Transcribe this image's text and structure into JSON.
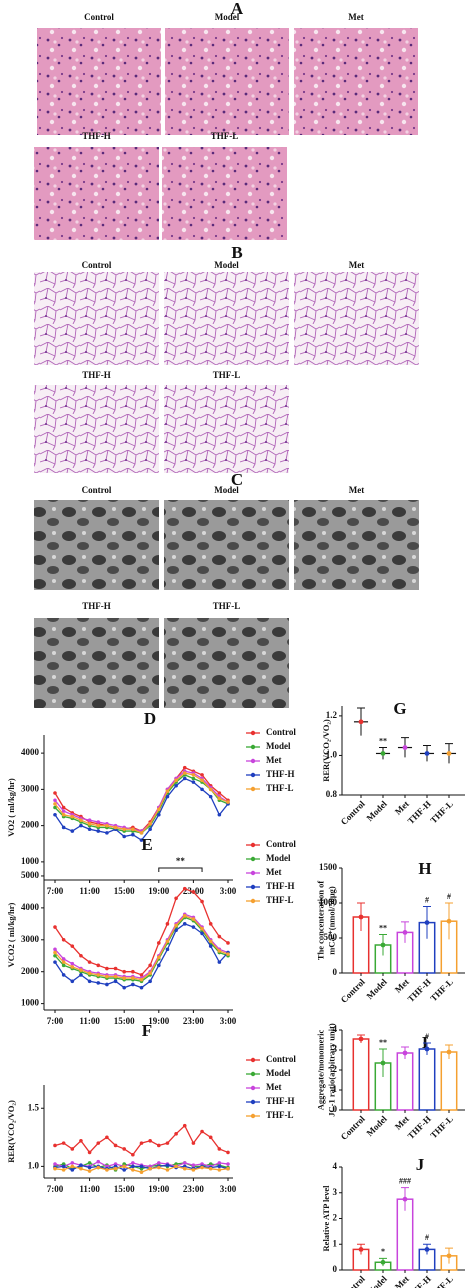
{
  "image_panels": [
    {
      "label": "A",
      "images": [
        "Control",
        "Model",
        "Met",
        "THF-H",
        "THF-L"
      ]
    },
    {
      "label": "B",
      "images": [
        "Control",
        "Model",
        "Met",
        "THF-H",
        "THF-L"
      ]
    },
    {
      "label": "C",
      "images": [
        "Control",
        "Model",
        "Met",
        "THF-H",
        "THF-L"
      ]
    }
  ],
  "chart_data": [
    {
      "type": "line",
      "title": "D",
      "ylabel": "VO2 ( ml/kg/hr)",
      "legend": "right",
      "categories": [
        "7:00",
        null,
        null,
        null,
        "11:00",
        null,
        null,
        null,
        "15:00",
        null,
        null,
        null,
        "19:00",
        null,
        null,
        null,
        "23:00",
        null,
        null,
        null,
        "3:00"
      ],
      "ylim": [
        500,
        4500
      ],
      "yticks": [
        1000,
        2000,
        3000,
        4000
      ],
      "series": [
        {
          "name": "Control",
          "color": "#e8312f",
          "values": [
            2900,
            2500,
            2350,
            2250,
            2100,
            2050,
            2000,
            1950,
            1900,
            1950,
            1850,
            2100,
            2500,
            3000,
            3300,
            3600,
            3500,
            3400,
            3100,
            2900,
            2700
          ]
        },
        {
          "name": "Model",
          "color": "#3aa935",
          "values": [
            2500,
            2250,
            2200,
            2100,
            2000,
            1950,
            1950,
            1900,
            1850,
            1850,
            1800,
            2000,
            2400,
            2900,
            3200,
            3400,
            3300,
            3200,
            3000,
            2700,
            2600
          ]
        },
        {
          "name": "Met",
          "color": "#c844dc",
          "values": [
            2700,
            2400,
            2300,
            2200,
            2150,
            2100,
            2050,
            2000,
            1950,
            1900,
            1850,
            2050,
            2500,
            3000,
            3300,
            3500,
            3450,
            3300,
            3050,
            2800,
            2650
          ]
        },
        {
          "name": "THF-H",
          "color": "#1f3fbf",
          "values": [
            2300,
            1950,
            1850,
            2000,
            1900,
            1850,
            1800,
            1900,
            1700,
            1750,
            1600,
            1900,
            2300,
            2800,
            3100,
            3300,
            3200,
            3000,
            2800,
            2300,
            2600
          ]
        },
        {
          "name": "THF-L",
          "color": "#f5a030",
          "values": [
            2600,
            2300,
            2250,
            2150,
            2050,
            2000,
            2000,
            1950,
            1900,
            1900,
            1800,
            2050,
            2450,
            2950,
            3250,
            3450,
            3400,
            3250,
            3000,
            2750,
            2650
          ]
        }
      ]
    },
    {
      "type": "line",
      "title": "E",
      "ylabel": "VCO2 ( ml/kg/hr)",
      "legend": "right",
      "annotation": "**",
      "categories": [
        "7:00",
        null,
        null,
        null,
        "11:00",
        null,
        null,
        null,
        "15:00",
        null,
        null,
        null,
        "19:00",
        null,
        null,
        null,
        "23:00",
        null,
        null,
        null,
        "3:00"
      ],
      "ylim": [
        800,
        5500
      ],
      "yticks": [
        1000,
        2000,
        3000,
        4000,
        5000
      ],
      "series": [
        {
          "name": "Control",
          "color": "#e8312f",
          "values": [
            3400,
            3000,
            2800,
            2500,
            2300,
            2200,
            2100,
            2100,
            2000,
            2000,
            1900,
            2200,
            2900,
            3500,
            4300,
            4600,
            4500,
            4200,
            3500,
            3100,
            2900
          ]
        },
        {
          "name": "Model",
          "color": "#3aa935",
          "values": [
            2500,
            2200,
            2100,
            2000,
            1900,
            1850,
            1800,
            1800,
            1750,
            1750,
            1700,
            1900,
            2400,
            2900,
            3400,
            3700,
            3600,
            3300,
            2900,
            2600,
            2500
          ]
        },
        {
          "name": "Met",
          "color": "#c844dc",
          "values": [
            2700,
            2400,
            2250,
            2100,
            2000,
            1950,
            1900,
            1900,
            1850,
            1850,
            1800,
            2000,
            2500,
            3000,
            3500,
            3800,
            3700,
            3400,
            3000,
            2700,
            2600
          ]
        },
        {
          "name": "THF-H",
          "color": "#1f3fbf",
          "values": [
            2300,
            1900,
            1700,
            1900,
            1700,
            1650,
            1600,
            1700,
            1500,
            1600,
            1500,
            1700,
            2200,
            2700,
            3300,
            3500,
            3400,
            3200,
            2800,
            2300,
            2600
          ]
        },
        {
          "name": "THF-L",
          "color": "#f5a030",
          "values": [
            2600,
            2300,
            2150,
            2050,
            1950,
            1900,
            1850,
            1850,
            1800,
            1800,
            1750,
            1950,
            2450,
            2950,
            3450,
            3750,
            3650,
            3350,
            2950,
            2650,
            2550
          ]
        }
      ]
    },
    {
      "type": "line",
      "title": "F",
      "ylabel": "RER(VCO₂/VO₂)",
      "legend": "right",
      "categories": [
        "7:00",
        null,
        null,
        null,
        "11:00",
        null,
        null,
        null,
        "15:00",
        null,
        null,
        null,
        "19:00",
        null,
        null,
        null,
        "23:00",
        null,
        null,
        null,
        "3:00"
      ],
      "ylim": [
        0.9,
        1.7
      ],
      "yticks": [
        {
          "value": 1,
          "label": "1.0"
        },
        1.5
      ],
      "series": [
        {
          "name": "Control",
          "color": "#e8312f",
          "values": [
            1.18,
            1.2,
            1.15,
            1.22,
            1.12,
            1.2,
            1.25,
            1.18,
            1.15,
            1.1,
            1.2,
            1.22,
            1.18,
            1.2,
            1.28,
            1.35,
            1.2,
            1.3,
            1.25,
            1.15,
            1.12
          ]
        },
        {
          "name": "Model",
          "color": "#3aa935",
          "values": [
            1.0,
            1.02,
            0.98,
            1.0,
            1.03,
            0.99,
            1.01,
            0.97,
            1.02,
            1.0,
            0.98,
            1.0,
            1.01,
            1.0,
            1.02,
            1.03,
            1.0,
            1.0,
            1.02,
            1.01,
            0.99
          ]
        },
        {
          "name": "Met",
          "color": "#c844dc",
          "values": [
            1.02,
            1.0,
            1.03,
            1.01,
            1.0,
            1.04,
            1.0,
            1.02,
            1.0,
            1.03,
            1.01,
            1.0,
            1.03,
            1.02,
            1.0,
            1.03,
            1.01,
            1.02,
            1.0,
            1.03,
            1.02
          ]
        },
        {
          "name": "THF-H",
          "color": "#1f3fbf",
          "values": [
            0.99,
            1.0,
            0.97,
            1.01,
            0.99,
            1.0,
            0.98,
            1.0,
            0.97,
            1.0,
            1.0,
            0.98,
            1.0,
            1.01,
            0.99,
            1.0,
            0.98,
            1.0,
            0.99,
            1.0,
            0.98
          ]
        },
        {
          "name": "THF-L",
          "color": "#f5a030",
          "values": [
            0.98,
            0.97,
            1.0,
            0.98,
            0.96,
            0.99,
            0.97,
            0.98,
            1.0,
            0.97,
            0.95,
            0.98,
            0.99,
            0.97,
            1.0,
            0.98,
            0.97,
            0.99,
            0.98,
            0.97,
            0.98
          ]
        }
      ]
    },
    {
      "type": "dot",
      "title": "G",
      "ylabel": [
        "RER(VCO₂/VO₂)"
      ],
      "categories": [
        "Control",
        "Model",
        "Met",
        "THF-H",
        "THF-L"
      ],
      "colors": [
        "#e8312f",
        "#3aa935",
        "#c844dc",
        "#1f3fbf",
        "#f5a030"
      ],
      "values": [
        1.17,
        1.01,
        1.04,
        1.01,
        1.01
      ],
      "errors": [
        0.07,
        0.03,
        0.05,
        0.04,
        0.05
      ],
      "annotations": [
        {
          "category": "Model",
          "text": "**"
        }
      ],
      "ylim": [
        0.8,
        1.25
      ],
      "yticks": [
        0.8,
        {
          "value": 1,
          "label": "1.0"
        },
        1.2
      ]
    },
    {
      "type": "bar",
      "title": "H",
      "ylabel": [
        "The concenteration of",
        "mCa²⁺(nmol/50μg)"
      ],
      "categories": [
        "Control",
        "Model",
        "Met",
        "THF-H",
        "THF-L"
      ],
      "colors": [
        "#e8312f",
        "#3aa935",
        "#c844dc",
        "#1f3fbf",
        "#f5a030"
      ],
      "values": [
        800,
        400,
        580,
        720,
        740
      ],
      "errors": [
        200,
        150,
        150,
        230,
        260
      ],
      "annotations": [
        {
          "category": "Model",
          "text": "**"
        },
        {
          "category": "THF-H",
          "text": "#"
        },
        {
          "category": "THF-L",
          "text": "#"
        }
      ],
      "ylim": [
        0,
        1500
      ],
      "yticks": [
        0,
        500,
        1000,
        1500
      ]
    },
    {
      "type": "bar",
      "title": "I",
      "ylabel": [
        "Aggregate/monomeric",
        "JC-1 ratio(arbitrary unit)"
      ],
      "categories": [
        "Control",
        "Model",
        "Met",
        "THF-H",
        "THF-L"
      ],
      "colors": [
        "#e8312f",
        "#3aa935",
        "#c844dc",
        "#1f3fbf",
        "#f5a030"
      ],
      "values": [
        3.55,
        2.35,
        2.85,
        3.05,
        2.9
      ],
      "errors": [
        0.2,
        0.7,
        0.3,
        0.3,
        0.35
      ],
      "annotations": [
        {
          "category": "Model",
          "text": "**"
        },
        {
          "category": "THF-H",
          "text": "#"
        }
      ],
      "ylim": [
        0,
        4
      ],
      "yticks": [
        0,
        1,
        2,
        3,
        4
      ]
    },
    {
      "type": "bar",
      "title": "J",
      "ylabel": [
        "Relative ATP level"
      ],
      "categories": [
        "Control",
        "Model",
        "Met",
        "THF-H",
        "THF-L"
      ],
      "colors": [
        "#e8312f",
        "#3aa935",
        "#c844dc",
        "#1f3fbf",
        "#f5a030"
      ],
      "values": [
        0.8,
        0.3,
        2.75,
        0.8,
        0.55
      ],
      "errors": [
        0.2,
        0.15,
        0.45,
        0.2,
        0.3
      ],
      "annotations": [
        {
          "category": "Model",
          "text": "*"
        },
        {
          "category": "Met",
          "text": "###"
        },
        {
          "category": "THF-H",
          "text": "#"
        }
      ],
      "ylim": [
        0,
        4
      ],
      "yticks": [
        0,
        1,
        2,
        3,
        4
      ]
    }
  ]
}
